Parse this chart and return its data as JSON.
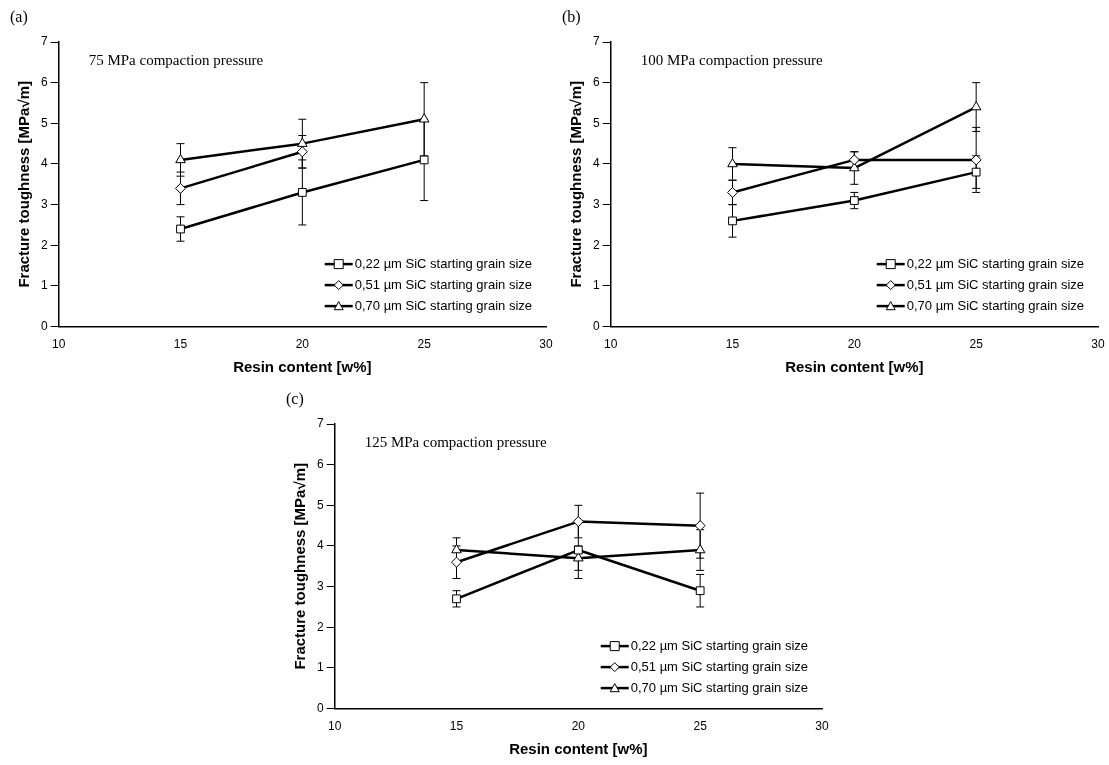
{
  "chart_data": [
    {
      "type": "line",
      "annotations": [
        "(a)",
        "75 MPa compaction pressure"
      ],
      "xlabel": "Resin content [w%]",
      "ylabel": "Fracture toughness [MPa√m]",
      "x": [
        15,
        20,
        25
      ],
      "xlim": [
        10,
        30
      ],
      "xticks": [
        10,
        15,
        20,
        25,
        30
      ],
      "ylim": [
        0,
        7
      ],
      "yticks": [
        0,
        1,
        2,
        3,
        4,
        5,
        6,
        7
      ],
      "grid": false,
      "legend": "bottom right",
      "line_style": "solid",
      "series": [
        {
          "name": "0,22 µm SiC starting grain size",
          "color": "#000000",
          "marker": "square",
          "values": [
            2.4,
            3.3,
            4.1
          ],
          "errors": [
            0.3,
            0.8,
            1.0
          ]
        },
        {
          "name": "0,51 µm SiC starting grain size",
          "color": "#000000",
          "marker": "diamond",
          "values": [
            3.4,
            4.3,
            null
          ],
          "errors": [
            0.4,
            0.4,
            null
          ]
        },
        {
          "name": "0,70 µm SiC starting grain size",
          "color": "#000000",
          "marker": "triangle",
          "values": [
            4.1,
            4.5,
            5.1
          ],
          "errors": [
            0.4,
            0.6,
            0.9
          ]
        }
      ]
    },
    {
      "type": "line",
      "annotations": [
        "(b)",
        "100 MPa compaction pressure"
      ],
      "xlabel": "Resin content [w%]",
      "ylabel": "Fracture toughness [MPa√m]",
      "x": [
        15,
        20,
        25
      ],
      "xlim": [
        10,
        30
      ],
      "xticks": [
        10,
        15,
        20,
        25,
        30
      ],
      "ylim": [
        0,
        7
      ],
      "yticks": [
        0,
        1,
        2,
        3,
        4,
        5,
        6,
        7
      ],
      "grid": false,
      "legend": "bottom right",
      "line_style": "solid",
      "series": [
        {
          "name": "0,22 µm SiC starting grain size",
          "color": "#000000",
          "marker": "square",
          "values": [
            2.6,
            3.1,
            3.8
          ],
          "errors": [
            0.4,
            0.2,
            0.4
          ]
        },
        {
          "name": "0,51 µm SiC starting grain size",
          "color": "#000000",
          "marker": "diamond",
          "values": [
            3.3,
            4.1,
            4.1
          ],
          "errors": [
            0.3,
            0.2,
            0.8
          ]
        },
        {
          "name": "0,70 µm SiC starting grain size",
          "color": "#000000",
          "marker": "triangle",
          "values": [
            4.0,
            3.9,
            5.4
          ],
          "errors": [
            0.4,
            0.4,
            0.6
          ]
        }
      ]
    },
    {
      "type": "line",
      "annotations": [
        "(c)",
        "125 MPa compaction pressure"
      ],
      "xlabel": "Resin content [w%]",
      "ylabel": "Fracture toughness [MPa√m]",
      "x": [
        15,
        20,
        25
      ],
      "xlim": [
        10,
        30
      ],
      "xticks": [
        10,
        15,
        20,
        25,
        30
      ],
      "ylim": [
        0,
        7
      ],
      "yticks": [
        0,
        1,
        2,
        3,
        4,
        5,
        6,
        7
      ],
      "grid": false,
      "legend": "bottom right",
      "line_style": "solid",
      "series": [
        {
          "name": "0,22 µm SiC starting grain size",
          "color": "#000000",
          "marker": "square",
          "values": [
            2.7,
            3.9,
            2.9
          ],
          "errors": [
            0.2,
            0.7,
            0.4
          ]
        },
        {
          "name": "0,51 µm SiC starting grain size",
          "color": "#000000",
          "marker": "diamond",
          "values": [
            3.6,
            4.6,
            4.5
          ],
          "errors": [
            0.4,
            0.4,
            0.8
          ]
        },
        {
          "name": "0,70 µm SiC starting grain size",
          "color": "#000000",
          "marker": "triangle",
          "values": [
            3.9,
            3.7,
            3.9
          ],
          "errors": [
            0.3,
            0.3,
            0.5
          ]
        }
      ]
    }
  ]
}
